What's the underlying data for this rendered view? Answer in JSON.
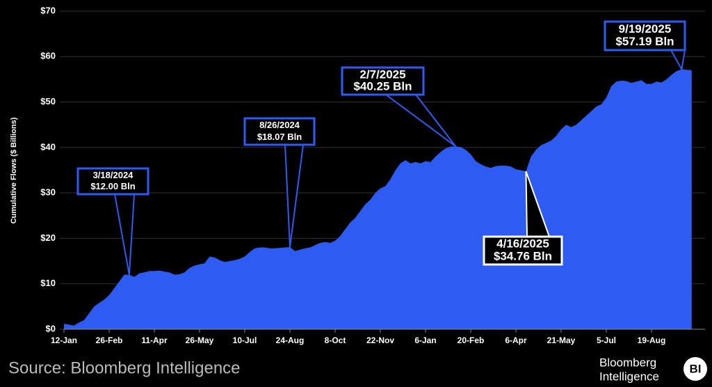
{
  "chart_data": {
    "type": "area",
    "y_label": "Cumulative Flows ($ Billions)",
    "source": "Source: Bloomberg Intelligence",
    "brand": [
      "Bloomberg",
      "Intelligence"
    ],
    "brand_badge": "BI",
    "color": "#2f5cf0",
    "grid": true,
    "ylim": [
      0,
      70
    ],
    "yticks": [
      {
        "value": 0,
        "label": "$0"
      },
      {
        "value": 10,
        "label": "$10"
      },
      {
        "value": 20,
        "label": "$20"
      },
      {
        "value": 30,
        "label": "$30"
      },
      {
        "value": 40,
        "label": "$40"
      },
      {
        "value": 50,
        "label": "$50"
      },
      {
        "value": 60,
        "label": "$60"
      },
      {
        "value": 70,
        "label": "$70"
      }
    ],
    "categories": [
      "12-Jan",
      null,
      null,
      null,
      null,
      null,
      null,
      null,
      null,
      "26-Feb",
      null,
      null,
      null,
      null,
      null,
      null,
      null,
      null,
      "11-Apr",
      null,
      null,
      null,
      null,
      null,
      null,
      null,
      null,
      "26-May",
      null,
      null,
      null,
      null,
      null,
      null,
      null,
      null,
      "10-Jul",
      null,
      null,
      null,
      null,
      null,
      null,
      null,
      null,
      "24-Aug",
      null,
      null,
      null,
      null,
      null,
      null,
      null,
      null,
      "8-Oct",
      null,
      null,
      null,
      null,
      null,
      null,
      null,
      null,
      "22-Nov",
      null,
      null,
      null,
      null,
      null,
      null,
      null,
      null,
      "6-Jan",
      null,
      null,
      null,
      null,
      null,
      null,
      null,
      null,
      "20-Feb",
      null,
      null,
      null,
      null,
      null,
      null,
      null,
      null,
      "6-Apr",
      null,
      null,
      null,
      null,
      null,
      null,
      null,
      null,
      "21-May",
      null,
      null,
      null,
      null,
      null,
      null,
      null,
      null,
      "5-Jul",
      null,
      null,
      null,
      null,
      null,
      null,
      null,
      null,
      "19-Aug",
      null,
      null,
      null,
      null,
      null,
      null,
      null,
      null
    ],
    "values": [
      1.2,
      1.0,
      0.8,
      1.5,
      2.0,
      3.5,
      5.0,
      5.8,
      6.5,
      7.5,
      9,
      10.5,
      12.0,
      12.0,
      11.5,
      12.3,
      12.5,
      12.8,
      12.8,
      12.9,
      12.7,
      12.5,
      12.0,
      12.1,
      12.5,
      13.5,
      14.0,
      14.3,
      14.5,
      16.0,
      15.8,
      15.2,
      14.8,
      15.0,
      15.2,
      15.5,
      16.0,
      17.0,
      17.8,
      18.0,
      18.0,
      17.8,
      17.8,
      17.9,
      18.0,
      18.07,
      17.2,
      17.5,
      17.8,
      18.0,
      18.5,
      19.0,
      19.2,
      19.0,
      19.5,
      20.5,
      22.0,
      23.5,
      24.5,
      26.0,
      27.5,
      28.5,
      30.0,
      31.0,
      31.5,
      33.0,
      35.0,
      36.5,
      37.2,
      36.5,
      36.8,
      36.5,
      37.0,
      36.8,
      38.0,
      39.0,
      39.8,
      40.2,
      40.25,
      40.1,
      39.5,
      38.5,
      37.0,
      36.3,
      35.8,
      35.5,
      35.9,
      36.0,
      36.0,
      35.8,
      35.2,
      35.0,
      34.76,
      38.0,
      39.5,
      40.5,
      41.0,
      41.5,
      42.5,
      44.0,
      45.0,
      44.5,
      45.0,
      46.0,
      47.0,
      48.0,
      49.0,
      49.5,
      51.0,
      53.5,
      54.5,
      54.7,
      54.6,
      54.2,
      54.5,
      54.8,
      54.0,
      54.0,
      54.5,
      54.3,
      55.0,
      56.0,
      56.8,
      57.19,
      57.1,
      57.0
    ],
    "annotations": [
      {
        "lines": [
          "3/18/2024",
          "$12.00 Bln"
        ]
      },
      {
        "lines": [
          "8/26/2024",
          "$18.07 Bln"
        ]
      },
      {
        "lines": [
          "2/7/2025",
          "$40.25 Bln"
        ]
      },
      {
        "lines": [
          "4/16/2025",
          "$34.76 Bln"
        ]
      },
      {
        "lines": [
          "9/19/2025",
          "$57.19 Bln"
        ]
      }
    ]
  }
}
